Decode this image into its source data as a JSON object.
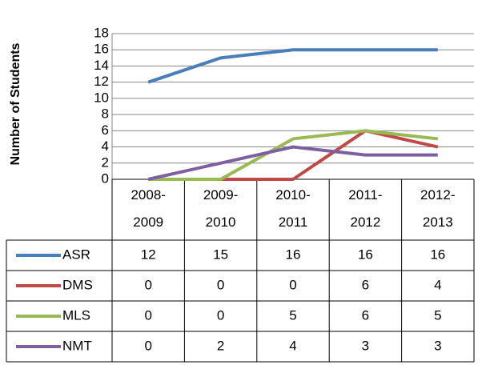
{
  "chart_data": {
    "type": "line",
    "y_label": "Number of Students",
    "categories": [
      "2008-2009",
      "2009-2010",
      "2010-2011",
      "2011-2012",
      "2012-2013"
    ],
    "series": [
      {
        "name": "ASR",
        "color": "#4a7ebb",
        "values": [
          12,
          15,
          16,
          16,
          16
        ]
      },
      {
        "name": "DMS",
        "color": "#be4b48",
        "values": [
          0,
          0,
          0,
          6,
          4
        ]
      },
      {
        "name": "MLS",
        "color": "#98b954",
        "values": [
          0,
          0,
          5,
          6,
          5
        ]
      },
      {
        "name": "NMT",
        "color": "#7d60a0",
        "values": [
          0,
          2,
          4,
          3,
          3
        ]
      }
    ],
    "ylim": [
      0,
      18
    ],
    "yticks": [
      0,
      2,
      4,
      6,
      8,
      10,
      12,
      14,
      16,
      18
    ],
    "grid": true
  }
}
